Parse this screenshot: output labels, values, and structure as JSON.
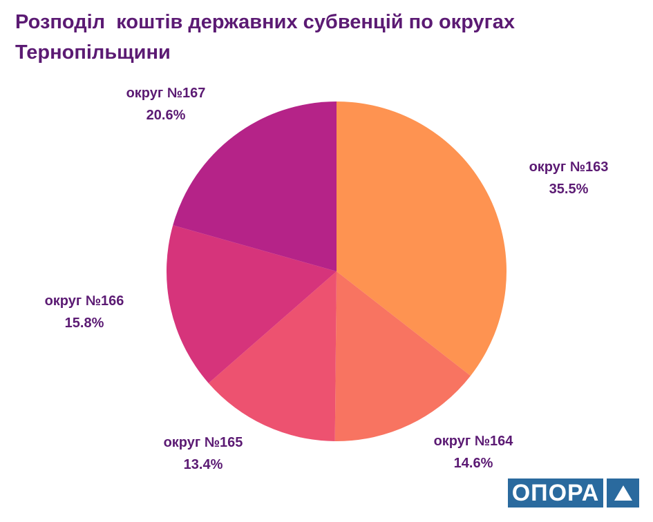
{
  "chart_data": {
    "type": "pie",
    "title": "Розподіл  коштів державних субвенцій по округах Тернопільщини",
    "categories": [
      "округ №163",
      "округ №164",
      "округ №165",
      "округ №166",
      "округ №167"
    ],
    "values": [
      35.5,
      14.6,
      13.4,
      15.8,
      20.6
    ],
    "value_labels": [
      "35.5%",
      "14.6%",
      "13.4%",
      "15.8%",
      "20.6%"
    ],
    "colors": [
      "#fe9351",
      "#f87461",
      "#ed5270",
      "#d6347b",
      "#b52388"
    ],
    "start": "12 o'clock",
    "direction": "clockwise",
    "legend": "none"
  },
  "logo": {
    "text": "ОПОРА",
    "mark": "triangle-icon"
  }
}
